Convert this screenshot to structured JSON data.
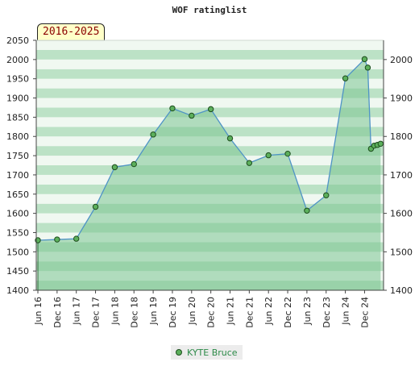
{
  "chart_data": {
    "type": "area",
    "title": "WOF ratinglist",
    "range_label": "2016-2025",
    "ylim": [
      1400,
      2050
    ],
    "y_ticks_left": [
      1400,
      1450,
      1500,
      1550,
      1600,
      1650,
      1700,
      1750,
      1800,
      1850,
      1900,
      1950,
      2000,
      2050
    ],
    "y_ticks_right": [
      1400,
      1500,
      1600,
      1700,
      1800,
      1900,
      2000
    ],
    "x_labels": [
      "Jun 16",
      "Dec 16",
      "Jun 17",
      "Dec 17",
      "Jun 18",
      "Dec 18",
      "Jun 19",
      "Dec 19",
      "Jun 20",
      "Dec 20",
      "Jun 21",
      "Dec 21",
      "Jun 22",
      "Dec 22",
      "Jun 23",
      "Dec 23",
      "Jun 24",
      "Dec 24"
    ],
    "series": [
      {
        "name": "KYTE Bruce",
        "points": [
          {
            "x": "Jun 16",
            "y": 1530
          },
          {
            "x": "Dec 16",
            "y": 1532
          },
          {
            "x": "Jun 17",
            "y": 1534
          },
          {
            "x": "Dec 17",
            "y": 1617
          },
          {
            "x": "Jun 18",
            "y": 1720
          },
          {
            "x": "Dec 18",
            "y": 1728
          },
          {
            "x": "Jun 19",
            "y": 1805
          },
          {
            "x": "Dec 19",
            "y": 1873
          },
          {
            "x": "Jun 20",
            "y": 1854
          },
          {
            "x": "Dec 20",
            "y": 1871
          },
          {
            "x": "Jun 21",
            "y": 1795
          },
          {
            "x": "Dec 21",
            "y": 1731
          },
          {
            "x": "Jun 22",
            "y": 1751
          },
          {
            "x": "Dec 22",
            "y": 1755
          },
          {
            "x": "Jun 23",
            "y": 1607
          },
          {
            "x": "Dec 23",
            "y": 1647
          },
          {
            "x": "Jun 24",
            "y": 1951
          },
          {
            "x": "Dec 24",
            "y": 2001
          },
          {
            "x": "Jan 25",
            "y": 1979
          },
          {
            "x": "Feb 25",
            "y": 1768
          },
          {
            "x": "Mar 25",
            "y": 1776
          },
          {
            "x": "Apr 25",
            "y": 1778
          },
          {
            "x": "May 25",
            "y": 1781
          }
        ]
      }
    ],
    "colors": {
      "fill": "#7cc591",
      "line": "#4f93c6",
      "marker": "#5cb05c",
      "marker_edge": "#1d4d1d",
      "band_light": "#eef7f0",
      "band_dark": "#b5dfc0",
      "legend_text": "#2c8a48",
      "badge_text": "#8b0000",
      "badge_bg": "#ffffc8"
    },
    "legend_position": "bottom-center",
    "grid": true
  }
}
